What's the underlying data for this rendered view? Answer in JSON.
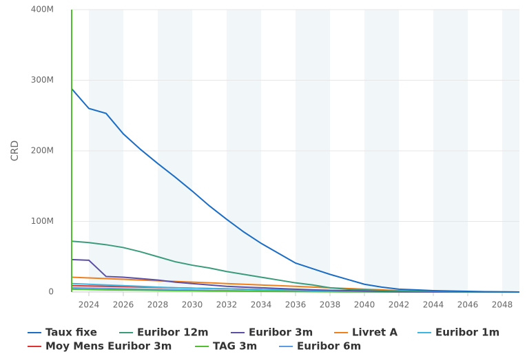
{
  "chart_data": {
    "type": "line",
    "y_label": "CRD",
    "x": [
      2023,
      2024,
      2025,
      2026,
      2027,
      2028,
      2029,
      2030,
      2031,
      2032,
      2033,
      2034,
      2035,
      2036,
      2037,
      2038,
      2039,
      2040,
      2041,
      2042,
      2043,
      2044,
      2045,
      2046,
      2047,
      2048,
      2049
    ],
    "xlim": [
      2023,
      2049
    ],
    "xticks": [
      2024,
      2026,
      2028,
      2030,
      2032,
      2034,
      2036,
      2038,
      2040,
      2042,
      2044,
      2046,
      2048
    ],
    "ylim": [
      0,
      400000000
    ],
    "yticks": [
      0,
      {
        "value": 100000000,
        "label": "100M"
      },
      {
        "value": 200000000,
        "label": "200M"
      },
      {
        "value": 300000000,
        "label": "300M"
      },
      {
        "value": 400000000,
        "label": "400M"
      }
    ],
    "grid": true,
    "series": [
      {
        "name": "Taux fixe",
        "color": "#1a6cc4",
        "values": [
          288000000,
          260000000,
          253000000,
          224000000,
          202000000,
          182000000,
          163000000,
          143000000,
          122000000,
          103000000,
          85000000,
          69000000,
          55000000,
          41000000,
          33000000,
          25000000,
          18000000,
          11000000,
          7000000,
          4000000,
          3000000,
          2000000,
          1500000,
          1000000,
          500000,
          300000,
          0
        ]
      },
      {
        "name": "Euribor 12m",
        "color": "#3a9b7a",
        "values": [
          72000000,
          70000000,
          67000000,
          63000000,
          57000000,
          50000000,
          43000000,
          38000000,
          34000000,
          29000000,
          25000000,
          21000000,
          17000000,
          13000000,
          10000000,
          6000000,
          4000000,
          3000000,
          2000000,
          1500000,
          1000000,
          1000000,
          500000,
          300000,
          200000,
          100000,
          0
        ]
      },
      {
        "name": "Euribor 3m",
        "color": "#5b4ea6",
        "values": [
          46000000,
          45000000,
          22000000,
          21000000,
          19000000,
          17000000,
          14000000,
          12000000,
          10000000,
          8000000,
          7000000,
          6000000,
          5000000,
          4000000,
          3000000,
          2500000,
          2000000,
          1500000,
          1000000,
          500000,
          300000,
          200000,
          100000,
          0,
          0,
          0,
          0
        ]
      },
      {
        "name": "Livret A",
        "color": "#f07f1a",
        "values": [
          21000000,
          20000000,
          19000000,
          18000000,
          17000000,
          16000000,
          15000000,
          14000000,
          13000000,
          12000000,
          11000000,
          10000000,
          9000000,
          8000000,
          7000000,
          6000000,
          5000000,
          4000000,
          3000000,
          2000000,
          1500000,
          1000000,
          500000,
          300000,
          200000,
          100000,
          0
        ]
      },
      {
        "name": "Euribor 1m",
        "color": "#3ab6e0",
        "values": [
          12000000,
          11000000,
          10000000,
          9000000,
          8000000,
          7000000,
          6000000,
          5500000,
          5000000,
          4500000,
          4000000,
          3500000,
          3000000,
          2500000,
          2000000,
          1500000,
          1000000,
          800000,
          600000,
          400000,
          300000,
          200000,
          100000,
          0,
          0,
          0,
          0
        ]
      },
      {
        "name": "Moy Mens Euribor 3m",
        "color": "#e03030",
        "values": [
          9000000,
          8500000,
          8000000,
          7500000,
          7000000,
          6500000,
          6000000,
          5500000,
          5000000,
          4500000,
          4000000,
          3500000,
          3000000,
          2500000,
          2000000,
          1500000,
          1000000,
          800000,
          500000,
          300000,
          200000,
          100000,
          0,
          0,
          0,
          0,
          0
        ]
      },
      {
        "name": "TAG 3m",
        "color": "#4fbf2f",
        "values": [
          4000000,
          3500000,
          3000000,
          2800000,
          2500000,
          2200000,
          2000000,
          1800000,
          1500000,
          1300000,
          1100000,
          1000000,
          800000,
          700000,
          500000,
          400000,
          300000,
          200000,
          100000,
          0,
          0,
          0,
          0,
          0,
          0,
          0,
          0
        ]
      },
      {
        "name": "Euribor 6m",
        "color": "#5b9be6",
        "values": [
          6000000,
          5500000,
          5000000,
          4500000,
          4000000,
          3600000,
          3200000,
          2800000,
          2400000,
          2000000,
          1700000,
          1400000,
          1100000,
          900000,
          700000,
          500000,
          300000,
          200000,
          100000,
          0,
          0,
          0,
          0,
          0,
          0,
          0,
          0
        ]
      }
    ]
  }
}
